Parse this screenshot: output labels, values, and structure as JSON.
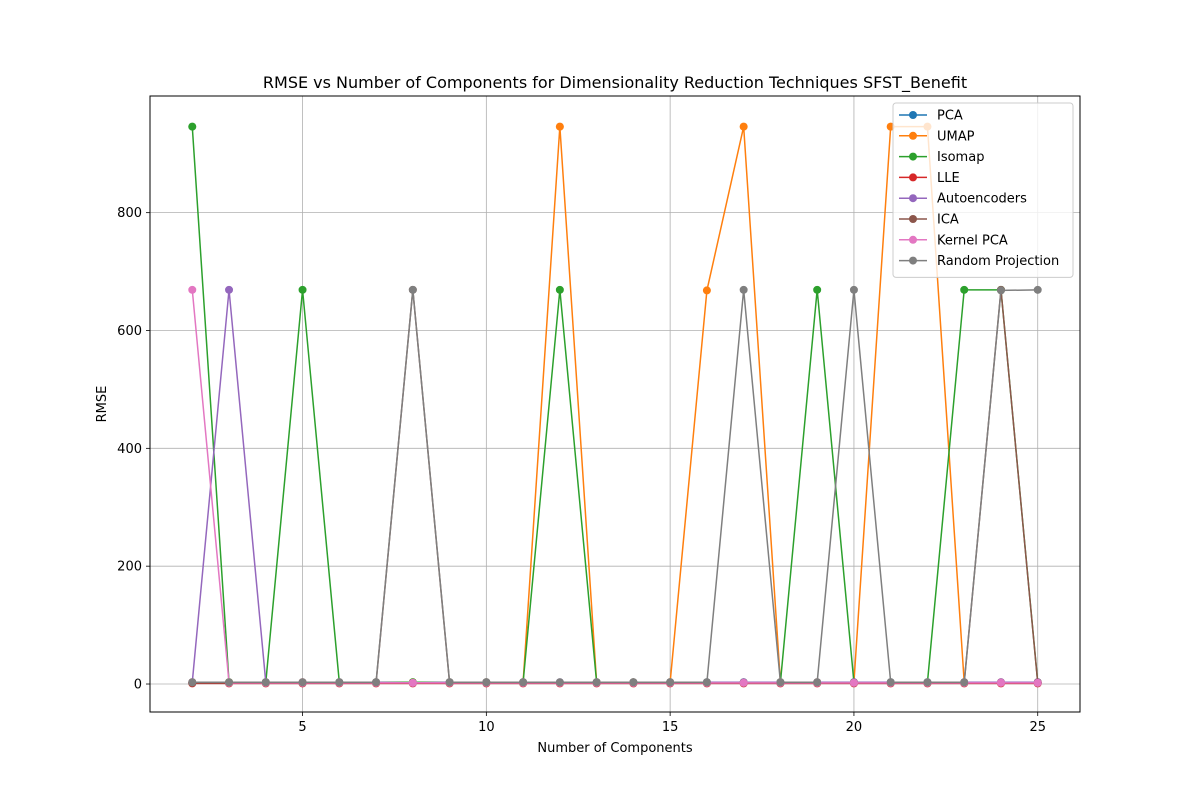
{
  "chart_data": {
    "type": "line",
    "title": "RMSE vs Number of Components for Dimensionality Reduction Techniques SFST_Benefit",
    "xlabel": "Number of Components",
    "ylabel": "RMSE",
    "xlim": [
      0.85,
      26.15
    ],
    "ylim": [
      -47.5,
      998
    ],
    "xticks": [
      5,
      10,
      15,
      20,
      25
    ],
    "yticks": [
      0,
      200,
      400,
      600,
      800
    ],
    "grid": true,
    "legend_position": "top-right",
    "x": [
      2,
      3,
      4,
      5,
      6,
      7,
      8,
      9,
      10,
      11,
      12,
      13,
      14,
      15,
      16,
      17,
      18,
      19,
      20,
      21,
      22,
      23,
      24,
      25
    ],
    "series": [
      {
        "name": "PCA",
        "color": "#1f77b4",
        "values": [
          2,
          2,
          2,
          2,
          2,
          2,
          2,
          2,
          2,
          2,
          2,
          2,
          2,
          2,
          2,
          2,
          2,
          2,
          2,
          2,
          2,
          2,
          2,
          2
        ]
      },
      {
        "name": "UMAP",
        "color": "#ff7f0e",
        "values": [
          3,
          3,
          3,
          3,
          3,
          3,
          3,
          3,
          3,
          3,
          946,
          3,
          3,
          3,
          668,
          946,
          3,
          3,
          3,
          946,
          946,
          3,
          3,
          3
        ]
      },
      {
        "name": "Isomap",
        "color": "#2ca02c",
        "values": [
          946,
          3,
          3,
          669,
          3,
          3,
          3,
          3,
          3,
          3,
          669,
          3,
          3,
          3,
          3,
          3,
          3,
          669,
          3,
          3,
          3,
          669,
          669,
          3
        ]
      },
      {
        "name": "LLE",
        "color": "#d62728",
        "values": [
          1,
          1,
          1,
          1,
          1,
          1,
          1,
          1,
          1,
          1,
          1,
          1,
          1,
          1,
          1,
          1,
          1,
          1,
          1,
          1,
          1,
          1,
          1,
          1
        ]
      },
      {
        "name": "Autoencoders",
        "color": "#9467bd",
        "values": [
          3,
          669,
          3,
          3,
          3,
          3,
          2,
          3,
          3,
          3,
          3,
          3,
          3,
          3,
          3,
          3,
          3,
          3,
          3,
          3,
          3,
          3,
          3,
          3
        ]
      },
      {
        "name": "ICA",
        "color": "#8c564b",
        "values": [
          2,
          2,
          2,
          2,
          2,
          2,
          669,
          2,
          2,
          2,
          2,
          2,
          2,
          2,
          2,
          2,
          2,
          2,
          2,
          2,
          2,
          2,
          669,
          2
        ]
      },
      {
        "name": "Kernel PCA",
        "color": "#e377c2",
        "values": [
          669,
          2,
          2,
          2,
          2,
          2,
          2,
          2,
          2,
          2,
          2,
          2,
          2,
          2,
          2,
          2,
          2,
          2,
          2,
          2,
          2,
          2,
          2,
          2
        ]
      },
      {
        "name": "Random Projection",
        "color": "#7f7f7f",
        "values": [
          3,
          3,
          3,
          3,
          3,
          3,
          669,
          3,
          3,
          3,
          3,
          3,
          3,
          3,
          3,
          669,
          3,
          3,
          669,
          3,
          3,
          3,
          668,
          669
        ]
      }
    ]
  }
}
